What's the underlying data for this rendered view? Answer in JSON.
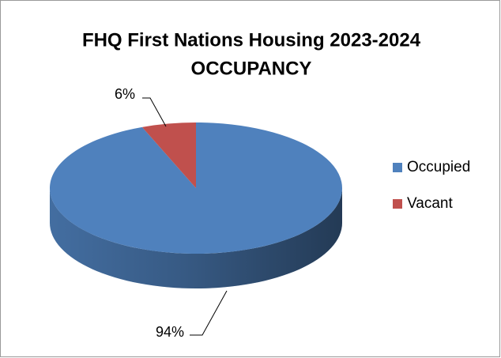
{
  "chart_data": {
    "type": "pie3d",
    "title": [
      "FHQ First Nations Housing 2023-2024",
      "OCCUPANCY"
    ],
    "categories": [
      "Occupied",
      "Vacant"
    ],
    "values": [
      94,
      6
    ],
    "value_labels": [
      "94%",
      "6%"
    ],
    "colors": [
      "#4f81bd",
      "#c0504d"
    ],
    "legend": "right"
  }
}
